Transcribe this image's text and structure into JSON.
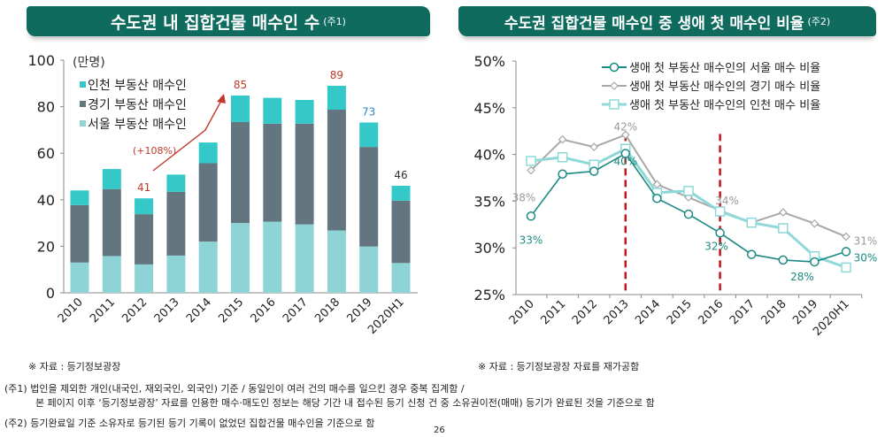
{
  "headers": {
    "left": {
      "title": "수도권 내 집합건물 매수인 수",
      "note": "(주1)"
    },
    "right": {
      "title": "수도권 집합건물 매수인 중 생애 첫 매수인 비율",
      "note": "(주2)"
    }
  },
  "chart_data": [
    {
      "type": "bar",
      "stacked": true,
      "unit_label": "(만명)",
      "categories": [
        "2010",
        "2011",
        "2012",
        "2013",
        "2014",
        "2015",
        "2016",
        "2017",
        "2018",
        "2019",
        "2020H1"
      ],
      "ylim": [
        0,
        100
      ],
      "yticks": [
        0,
        20,
        40,
        60,
        80,
        100
      ],
      "series": [
        {
          "name": "서울 부동산 매수인",
          "color": "#8ed3d6",
          "values": [
            13.0,
            15.8,
            12.2,
            16.0,
            22.0,
            30.0,
            30.6,
            29.4,
            26.8,
            19.9,
            12.8
          ]
        },
        {
          "name": "경기 부동산 매수인",
          "color": "#637680",
          "values": [
            24.7,
            28.8,
            21.6,
            27.4,
            33.7,
            43.4,
            42.1,
            43.3,
            51.9,
            42.8,
            26.8
          ]
        },
        {
          "name": "인천 부동산 매수인",
          "color": "#34c8c8",
          "values": [
            6.3,
            8.6,
            6.8,
            7.4,
            8.9,
            11.4,
            11.1,
            10.2,
            10.3,
            10.5,
            6.4
          ]
        }
      ],
      "legend_order": [
        "인천 부동산 매수인",
        "경기 부동산 매수인",
        "서울 부동산 매수인"
      ],
      "legend": "top-left",
      "data_labels": [
        {
          "category": "2012",
          "text": "41",
          "color": "#c0392b"
        },
        {
          "category": "2015",
          "text": "85",
          "color": "#c0392b"
        },
        {
          "category": "2018",
          "text": "89",
          "color": "#c0392b"
        },
        {
          "category": "2019",
          "text": "73",
          "color": "#2e86c1"
        },
        {
          "category": "2020H1",
          "text": "46",
          "color": "#333333"
        }
      ],
      "annotation": {
        "text": "(+108%)",
        "from": "2012",
        "to": "2015",
        "color": "#c0392b"
      },
      "grid": false
    },
    {
      "type": "line",
      "categories": [
        "2010",
        "2011",
        "2012",
        "2013",
        "2014",
        "2015",
        "2016",
        "2017",
        "2018",
        "2019",
        "2020H1"
      ],
      "ylim": [
        25,
        50
      ],
      "yticks": [
        "25%",
        "30%",
        "35%",
        "40%",
        "45%",
        "50%"
      ],
      "series": [
        {
          "name": "생애 첫 부동산 매수인의 서울 매수 비율",
          "color": "#1a8a82",
          "marker": "circle",
          "values": [
            33.4,
            37.9,
            38.2,
            40.1,
            35.3,
            33.6,
            31.6,
            29.3,
            28.7,
            28.5,
            29.6
          ]
        },
        {
          "name": "생애 첫 부동산 매수인의 경기 매수 비율",
          "color": "#a8a8a8",
          "marker": "diamond",
          "values": [
            38.3,
            41.6,
            40.8,
            42.1,
            36.8,
            35.4,
            34.0,
            32.7,
            33.8,
            32.6,
            31.2
          ]
        },
        {
          "name": "생애 첫 부동산 매수인의 인천 매수 비율",
          "color": "#8fd8d8",
          "marker": "square",
          "values": [
            39.3,
            39.7,
            38.9,
            40.6,
            35.9,
            36.1,
            33.9,
            32.7,
            32.1,
            29.1,
            27.9
          ]
        }
      ],
      "legend": "top-right",
      "data_labels": [
        {
          "series": 1,
          "category": "2010",
          "text": "38%"
        },
        {
          "series": 0,
          "category": "2010",
          "text": "33%"
        },
        {
          "series": 1,
          "category": "2013",
          "text": "42%"
        },
        {
          "series": 0,
          "category": "2013",
          "text": "40%"
        },
        {
          "series": 1,
          "category": "2016",
          "text": "34%"
        },
        {
          "series": 0,
          "category": "2016",
          "text": "32%"
        },
        {
          "series": 0,
          "category": "2019",
          "text": "28%"
        },
        {
          "series": 1,
          "category": "2020H1",
          "text": "31%"
        },
        {
          "series": 0,
          "category": "2020H1",
          "text": "30%"
        }
      ],
      "reference_lines": [
        "2013",
        "2016"
      ],
      "reference_line_color": "#c0141c",
      "grid": false
    }
  ],
  "notes": {
    "source_left": "※ 자료 : 등기정보광장",
    "source_right": "※ 자료 : 등기정보광장 자료를 재가공함",
    "note1_line1": "(주1) 법인을 제외한 개인(내국인, 재외국인, 외국인) 기준 / 동일인이 여러 건의 매수를 일으킨 경우 중복 집계함 /",
    "note1_line2": "본 페이지 이후 ‘등기정보광장’ 자료를 인용한 매수·매도인 정보는 해당 기간 내 접수된 등기 신청 건 중 소유권이전(매매) 등기가 완료된 것을 기준으로 함",
    "note2": "(주2) 등기완료일 기준 소유자로 등기된 등기 기록이 없었던 집합건물 매수인을 기준으로 함",
    "page_number": "26"
  }
}
